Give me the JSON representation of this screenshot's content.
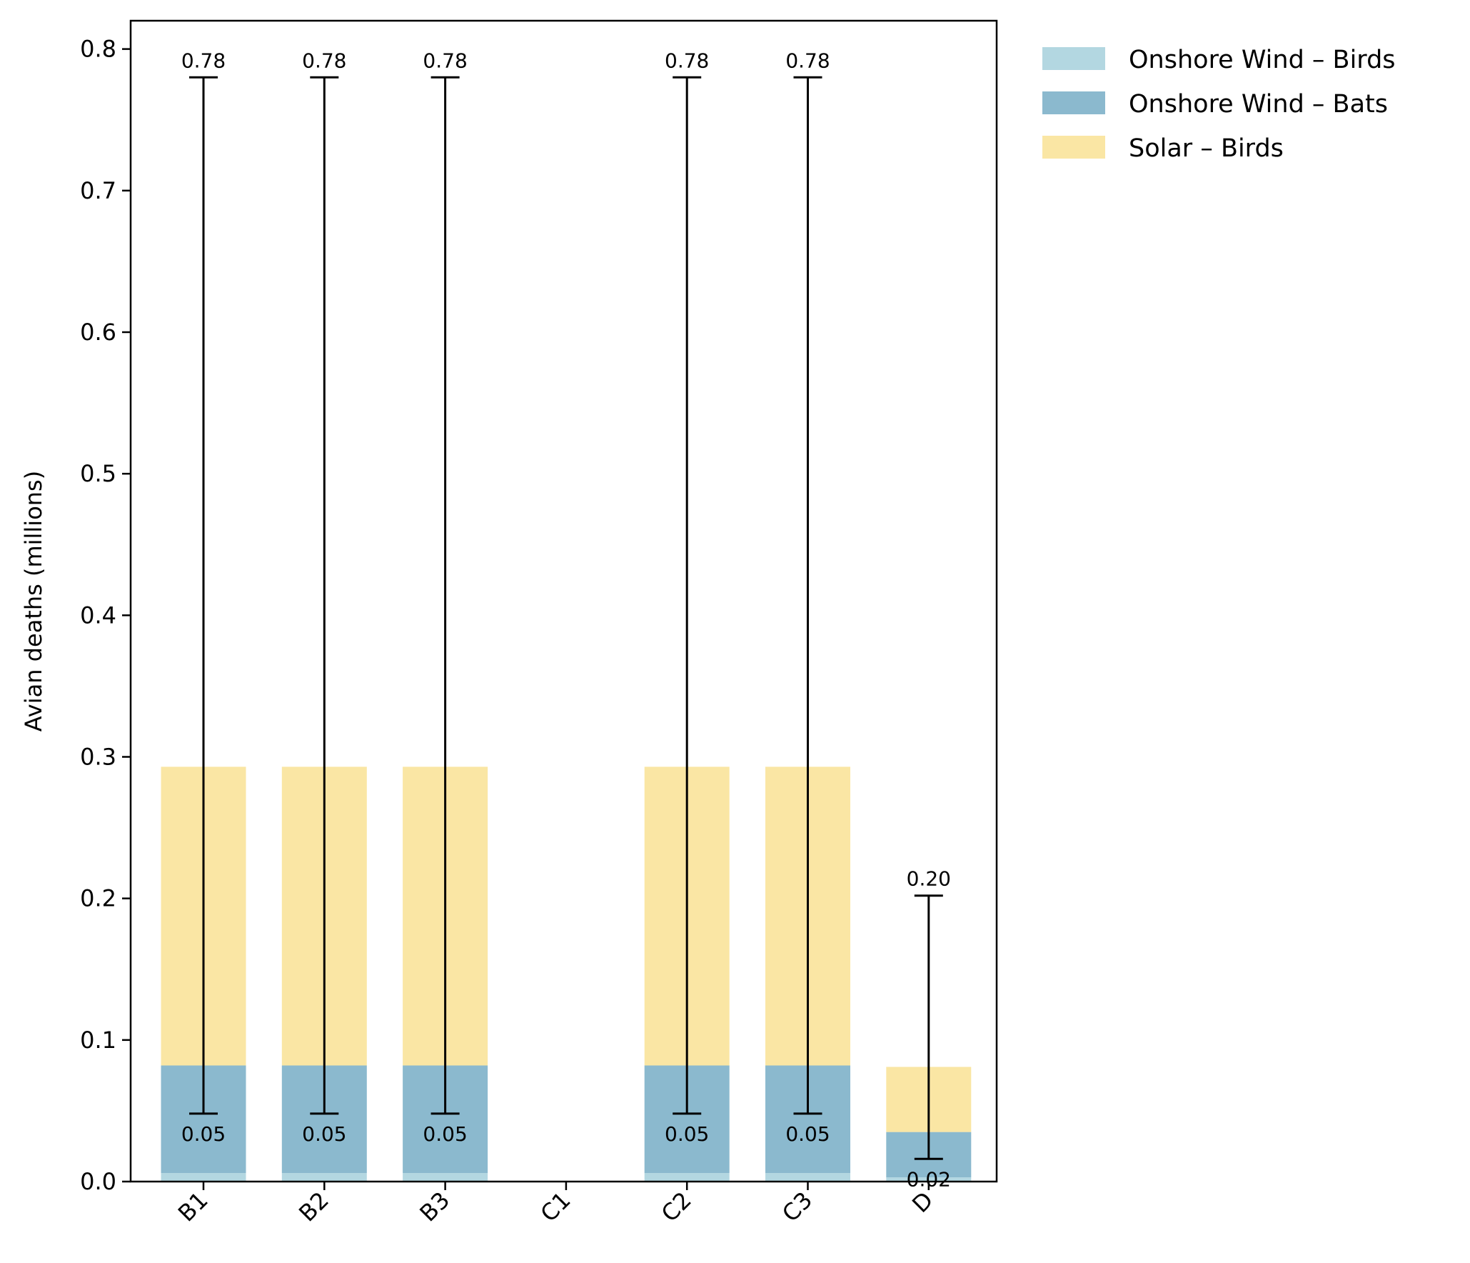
{
  "chart_data": {
    "type": "bar",
    "stacked": true,
    "categories": [
      "B1",
      "B2",
      "B3",
      "C1",
      "C2",
      "C3",
      "D"
    ],
    "ylabel": "Avian deaths (millions)",
    "ylim": [
      0,
      0.82
    ],
    "yticks": [
      "0.0",
      "0.1",
      "0.2",
      "0.3",
      "0.4",
      "0.5",
      "0.6",
      "0.7",
      "0.8"
    ],
    "series": [
      {
        "name": "Onshore Wind – Birds",
        "color": "#b3d7e1",
        "values": [
          0.006,
          0.006,
          0.006,
          0,
          0.006,
          0.006,
          0.003
        ]
      },
      {
        "name": "Onshore Wind – Bats",
        "color": "#8bb9ce",
        "values": [
          0.076,
          0.076,
          0.076,
          0,
          0.076,
          0.076,
          0.032
        ]
      },
      {
        "name": "Solar – Birds",
        "color": "#fae6a4",
        "values": [
          0.211,
          0.211,
          0.211,
          0,
          0.211,
          0.211,
          0.046
        ]
      }
    ],
    "error_bars": [
      {
        "category": "B1",
        "low": 0.048,
        "high": 0.78,
        "low_label": "0.05",
        "high_label": "0.78"
      },
      {
        "category": "B2",
        "low": 0.048,
        "high": 0.78,
        "low_label": "0.05",
        "high_label": "0.78"
      },
      {
        "category": "B3",
        "low": 0.048,
        "high": 0.78,
        "low_label": "0.05",
        "high_label": "0.78"
      },
      {
        "category": "C2",
        "low": 0.048,
        "high": 0.78,
        "low_label": "0.05",
        "high_label": "0.78"
      },
      {
        "category": "C3",
        "low": 0.048,
        "high": 0.78,
        "low_label": "0.05",
        "high_label": "0.78"
      },
      {
        "category": "D",
        "low": 0.016,
        "high": 0.202,
        "low_label": "0.02",
        "high_label": "0.20"
      }
    ],
    "grid": false,
    "legend_position": "outside-top-right"
  }
}
